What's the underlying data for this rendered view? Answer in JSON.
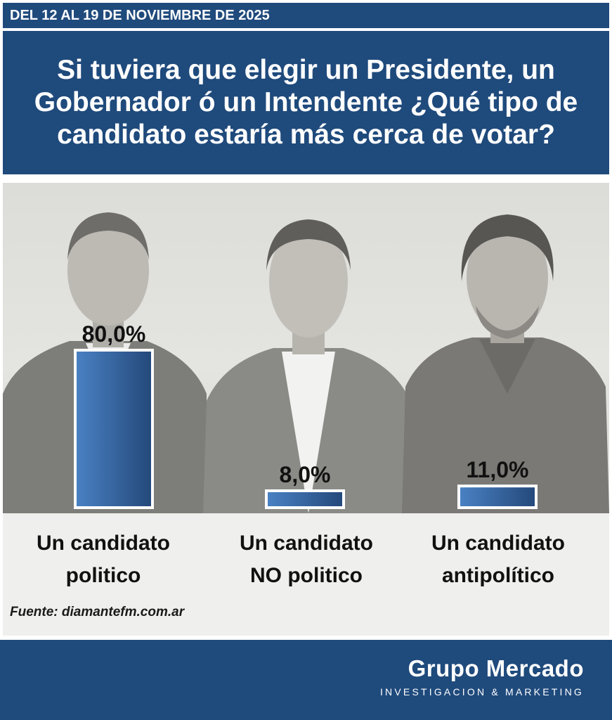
{
  "header": {
    "date_range": "DEL 12 AL 19 DE NOVIEMBRE DE 2025",
    "question": "Si tuviera que elegir un Presidente, un Gobernador ó un Intendente ¿Qué tipo de candidato estaría más cerca de votar?"
  },
  "chart_data": {
    "type": "bar",
    "title": "",
    "xlabel": "",
    "ylabel": "",
    "ylim": [
      0,
      80
    ],
    "categories": [
      [
        "Un candidato",
        "politico"
      ],
      [
        "Un candidato",
        "NO politico"
      ],
      [
        "Un candidato",
        "antipolítico"
      ]
    ],
    "values": [
      80.0,
      8.0,
      11.0
    ],
    "data_labels": [
      "80,0%",
      "8,0%",
      "11,0%"
    ],
    "bar_color_start": "#4a82c4",
    "bar_color_end": "#24487a",
    "bar_border": "#ffffff"
  },
  "source": {
    "text": "Fuente: diamantefm.com.ar"
  },
  "footer": {
    "brand_name": "Grupo Mercado",
    "brand_tagline": "INVESTIGACION & MARKETING"
  },
  "colors": {
    "header_bg": "#1f4a7c",
    "chart_bg": "#efefed"
  }
}
